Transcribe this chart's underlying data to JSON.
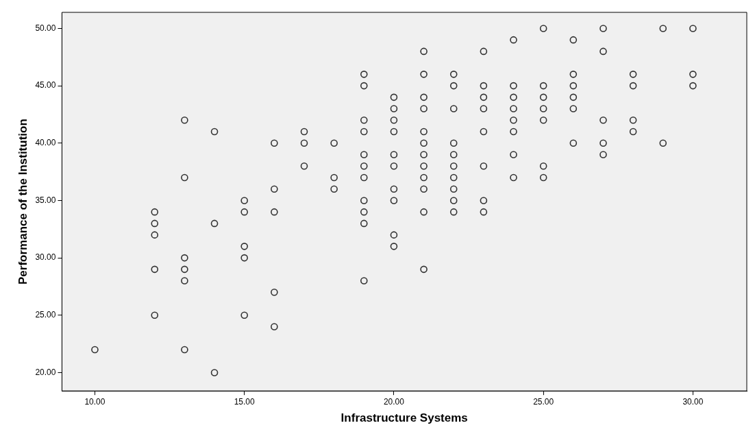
{
  "chart_data": {
    "type": "scatter",
    "xlabel": "Infrastructure Systems",
    "ylabel": "Performance of the Institution",
    "x": [
      10,
      12,
      12,
      12,
      12,
      12,
      13,
      13,
      13,
      13,
      13,
      13,
      14,
      14,
      14,
      15,
      15,
      15,
      15,
      15,
      16,
      16,
      16,
      16,
      16,
      17,
      17,
      17,
      18,
      18,
      18,
      19,
      19,
      19,
      19,
      19,
      19,
      19,
      19,
      19,
      19,
      19,
      20,
      20,
      20,
      20,
      20,
      20,
      20,
      20,
      20,
      20,
      21,
      21,
      21,
      21,
      21,
      21,
      21,
      21,
      21,
      21,
      21,
      21,
      22,
      22,
      22,
      22,
      22,
      22,
      22,
      22,
      22,
      22,
      23,
      23,
      23,
      23,
      23,
      23,
      23,
      23,
      24,
      24,
      24,
      24,
      24,
      24,
      24,
      24,
      25,
      25,
      25,
      25,
      25,
      25,
      25,
      26,
      26,
      26,
      26,
      26,
      26,
      27,
      27,
      27,
      27,
      27,
      28,
      28,
      28,
      28,
      29,
      29,
      30,
      30,
      30
    ],
    "series": [
      {
        "color": "#333333",
        "values": [
          22,
          34,
          33,
          32,
          29,
          25,
          42,
          37,
          30,
          29,
          28,
          22,
          41,
          33,
          20,
          35,
          34,
          31,
          30,
          25,
          40,
          36,
          34,
          27,
          24,
          41,
          40,
          38,
          40,
          37,
          36,
          46,
          45,
          42,
          41,
          39,
          38,
          37,
          35,
          34,
          33,
          28,
          44,
          43,
          42,
          41,
          39,
          38,
          36,
          35,
          32,
          31,
          48,
          46,
          44,
          43,
          41,
          40,
          39,
          38,
          37,
          36,
          34,
          29,
          46,
          45,
          43,
          40,
          39,
          38,
          37,
          36,
          35,
          34,
          48,
          45,
          44,
          43,
          41,
          38,
          35,
          34,
          49,
          45,
          44,
          43,
          42,
          41,
          39,
          37,
          50,
          45,
          44,
          43,
          42,
          38,
          37,
          49,
          46,
          45,
          44,
          43,
          40,
          50,
          48,
          42,
          40,
          39,
          46,
          45,
          42,
          41,
          50,
          40,
          50,
          46,
          45
        ]
      }
    ],
    "xlim": [
      8.9,
      31.8
    ],
    "ylim": [
      18.4,
      51.4
    ],
    "xticks": [
      {
        "value": 10,
        "label": "10.00"
      },
      {
        "value": 15,
        "label": "15.00"
      },
      {
        "value": 20,
        "label": "20.00"
      },
      {
        "value": 25,
        "label": "25.00"
      },
      {
        "value": 30,
        "label": "30.00"
      }
    ],
    "yticks": [
      {
        "value": 20,
        "label": "20.00"
      },
      {
        "value": 25,
        "label": "25.00"
      },
      {
        "value": 30,
        "label": "30.00"
      },
      {
        "value": 35,
        "label": "35.00"
      },
      {
        "value": 40,
        "label": "40.00"
      },
      {
        "value": 45,
        "label": "45.00"
      },
      {
        "value": 50,
        "label": "50.00"
      }
    ],
    "marker": "circle",
    "grid": false,
    "legend": false
  }
}
